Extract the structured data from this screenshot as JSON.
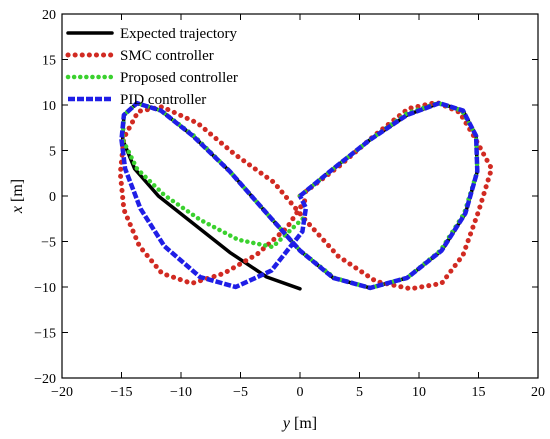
{
  "chart_data": {
    "type": "line",
    "xlabel": "y [m]",
    "ylabel": "x [m]",
    "xlim": [
      -20,
      20
    ],
    "ylim": [
      -20,
      20
    ],
    "xticks": [
      -20,
      -15,
      -10,
      -5,
      0,
      5,
      10,
      15,
      20
    ],
    "yticks": [
      -20,
      -15,
      -10,
      -5,
      0,
      5,
      10,
      15,
      20
    ],
    "grid": false,
    "legend_position": "top-left",
    "colors": {
      "expected": "#000000",
      "smc": "#d12a22",
      "proposed": "#3ad12e",
      "pid": "#1f1ee6"
    },
    "series": [
      {
        "name": "Expected trajectory",
        "style": "solid",
        "x": [
          0,
          2.8,
          5.9,
          9.0,
          11.7,
          13.7,
          14.8,
          14.9,
          13.9,
          11.9,
          9.0,
          5.9,
          2.8,
          0,
          -2.8,
          -5.9,
          -9.0,
          -11.7,
          -13.7,
          -14.8,
          -14.9,
          -13.9,
          -11.9,
          -9.0,
          -5.9,
          -2.8,
          0
        ],
        "y": [
          0,
          3.0,
          6.2,
          8.9,
          10.2,
          9.4,
          6.6,
          2.7,
          -1.9,
          -6.0,
          -9.0,
          -10.1,
          -9.0,
          -6.0,
          -1.9,
          2.7,
          6.6,
          9.4,
          10.2,
          8.9,
          6.2,
          3.0,
          0,
          -3.0,
          -6.2,
          -8.9,
          -10.2
        ]
      },
      {
        "name": "SMC controller",
        "style": "dotted",
        "x": [
          0,
          3.3,
          6.3,
          9.1,
          11.5,
          13.4,
          14.6,
          16.1,
          15.0,
          13.7,
          11.9,
          9.3,
          6.4,
          3.2,
          0.5,
          -2.2,
          -5.5,
          -8.6,
          -11.6,
          -13.6,
          -14.8,
          -15.1,
          -14.8,
          -13.5,
          -11.6,
          -9.1,
          -6.4,
          -3.6,
          -1.1,
          0.4
        ],
        "y": [
          0,
          3.3,
          6.7,
          9.6,
          10.3,
          9.2,
          6.6,
          3.0,
          -1.7,
          -6.5,
          -9.6,
          -10.2,
          -9.4,
          -6.6,
          -2.7,
          1.5,
          4.6,
          8.0,
          9.8,
          9.3,
          6.4,
          2.5,
          -1.5,
          -5.5,
          -8.5,
          -9.6,
          -8.5,
          -6.4,
          -3.5,
          -0.5
        ]
      },
      {
        "name": "Proposed controller",
        "style": "dashed",
        "x": [
          0,
          3.0,
          6.0,
          9.0,
          11.6,
          13.6,
          14.8,
          14.9,
          13.8,
          11.8,
          9.0,
          5.9,
          2.9,
          0,
          -2.8,
          -5.9,
          -8.9,
          -11.7,
          -13.7,
          -14.8,
          -14.9,
          -13.7,
          -11.4,
          -8.4,
          -5.2,
          -2.3,
          0.3
        ],
        "y": [
          0,
          3.2,
          6.3,
          9.1,
          10.2,
          9.4,
          6.6,
          2.7,
          -1.9,
          -6.0,
          -9.0,
          -10.1,
          -9.0,
          -6.0,
          -1.9,
          2.7,
          6.6,
          9.4,
          10.2,
          8.9,
          6.2,
          3.0,
          0.1,
          -2.6,
          -4.8,
          -5.6,
          -2.4
        ]
      },
      {
        "name": "PID controller",
        "style": "dashed",
        "x": [
          0,
          2.8,
          5.9,
          9.0,
          11.7,
          13.7,
          14.8,
          14.9,
          13.9,
          11.9,
          9.0,
          5.9,
          2.8,
          0,
          -2.8,
          -5.9,
          -9.0,
          -11.7,
          -13.7,
          -14.8,
          -15.0,
          -14.7,
          -13.4,
          -11.4,
          -8.4,
          -5.4,
          -2.4,
          0.2,
          0.5,
          0
        ],
        "y": [
          0,
          3.0,
          6.2,
          8.9,
          10.2,
          9.4,
          6.6,
          2.7,
          -1.9,
          -6.0,
          -9.0,
          -10.1,
          -9.0,
          -6.0,
          -1.9,
          2.7,
          6.6,
          9.4,
          10.2,
          8.9,
          6.2,
          3.0,
          -1.4,
          -5.5,
          -8.9,
          -10.0,
          -8.2,
          -3.9,
          -1.3,
          0
        ]
      }
    ]
  }
}
